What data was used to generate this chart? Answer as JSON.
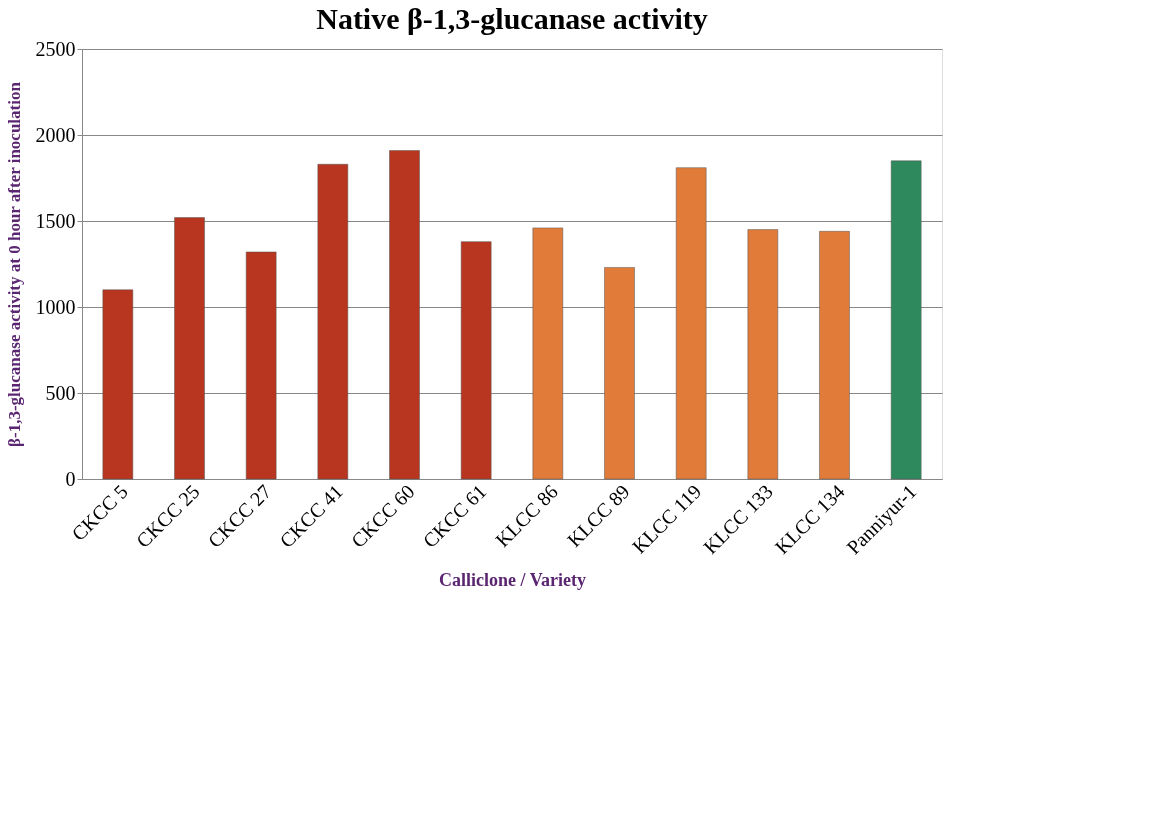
{
  "chart_data": {
    "type": "bar",
    "title": "Native β-1,3-glucanase activity",
    "xlabel": "Calliclone / Variety",
    "ylabel": "β-1,3-glucanase activity at 0 hour after inoculation",
    "categories": [
      "CKCC 5",
      "CKCC 25",
      "CKCC 27",
      "CKCC 41",
      "CKCC 60",
      "CKCC 61",
      "KLCC 86",
      "KLCC 89",
      "KLCC 119",
      "KLCC 133",
      "KLCC 134",
      "Panniyur-1"
    ],
    "values": [
      1100,
      1520,
      1320,
      1830,
      1910,
      1380,
      1460,
      1230,
      1810,
      1450,
      1440,
      1850
    ],
    "colors": [
      "#b8361f",
      "#b8361f",
      "#b8361f",
      "#b8361f",
      "#b8361f",
      "#b8361f",
      "#e07b39",
      "#e07b39",
      "#e07b39",
      "#e07b39",
      "#e07b39",
      "#2e8a5c"
    ],
    "ylim": [
      0,
      2500
    ],
    "yticks": [
      0,
      500,
      1000,
      1500,
      2000,
      2500
    ],
    "grid": "y"
  }
}
